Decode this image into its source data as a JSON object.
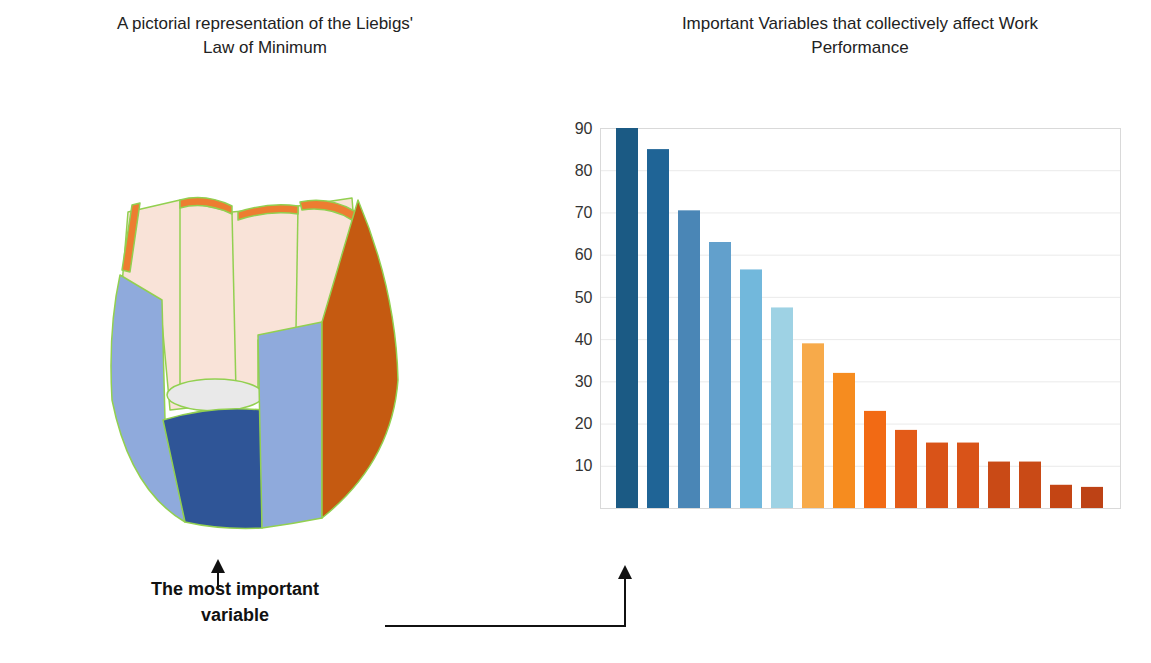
{
  "chart_data": {
    "type": "bar",
    "title": "Important Variables that collectively affect Work Performance",
    "categories": [
      null,
      null,
      null,
      null,
      null,
      null,
      null,
      null,
      null,
      null,
      null,
      null,
      null,
      null,
      null,
      null
    ],
    "values": [
      90,
      85,
      70.5,
      63,
      56.5,
      47.5,
      39,
      32,
      23,
      18.5,
      15.5,
      15.5,
      11,
      11,
      5.5,
      5
    ],
    "colors": [
      "#1b5a84",
      "#1f6496",
      "#4a86b6",
      "#62a0cc",
      "#72b8dc",
      "#9ed2e4",
      "#f7aa4a",
      "#f68c1f",
      "#f26a14",
      "#e35b18",
      "#d95318",
      "#d95318",
      "#c94a16",
      "#c94a16",
      "#c44514",
      "#bd4215"
    ],
    "ylim": [
      0,
      90
    ],
    "yticks": [
      10,
      20,
      30,
      40,
      50,
      60,
      70,
      80,
      90
    ],
    "grid": true,
    "tick_labels": "y"
  },
  "diagram": {
    "title": "A pictorial representation of the Liebigs' Law of Minimum",
    "label": "The most important variable"
  }
}
